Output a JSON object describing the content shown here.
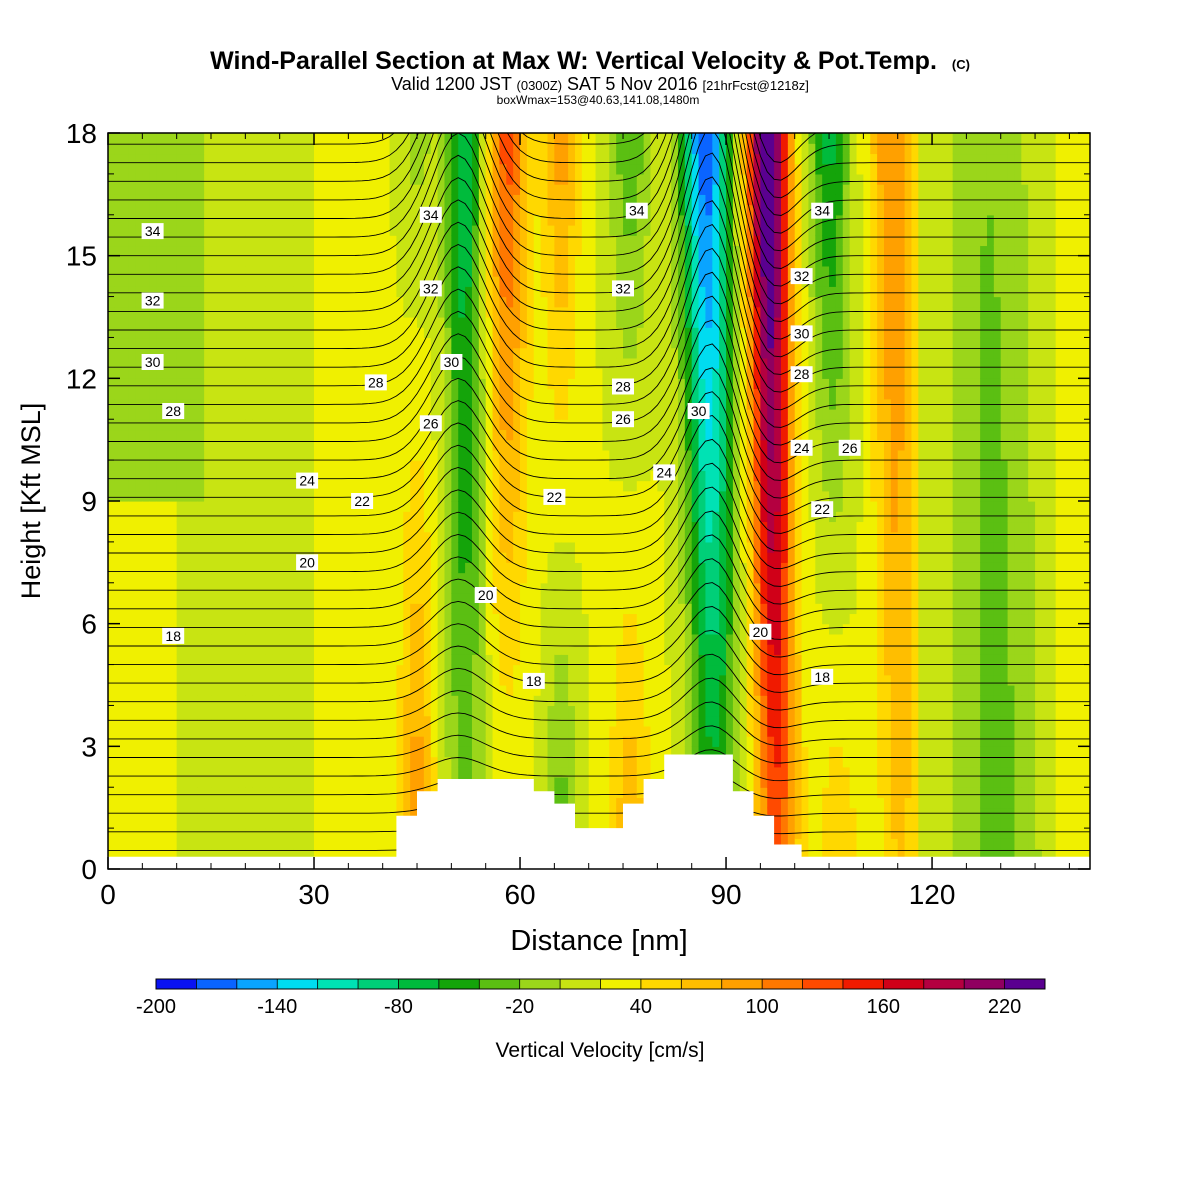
{
  "chart_data": {
    "type": "heatmap",
    "title": "Wind-Parallel Section at Max W: Vertical Velocity & Pot.Temp.",
    "title_mark": "(C)",
    "subtitle_parts": [
      "Valid 1200 JST ",
      "(0300Z)",
      " SAT 5 Nov 2016 ",
      "[21hrFcst@1218z]"
    ],
    "subtitle2": "boxWmax=153@40.63,141.08,1480m",
    "xlabel": "Distance [nm]",
    "ylabel": "Height [Kft MSL]",
    "xlim": [
      0,
      143
    ],
    "ylim": [
      0,
      18
    ],
    "xticks": [
      0,
      30,
      60,
      90,
      120
    ],
    "yticks": [
      0,
      3,
      6,
      9,
      12,
      15,
      18
    ],
    "colorbar": {
      "label": "Vertical Velocity [cm/s]",
      "min": -200,
      "max": 240,
      "step": 20,
      "tick_labels": [
        "-200",
        "-140",
        "-80",
        "-20",
        "40",
        "100",
        "160",
        "220"
      ],
      "colors": [
        "#0a12f2",
        "#0a64ff",
        "#0aa4ff",
        "#00dcf0",
        "#00e2b4",
        "#00cf78",
        "#00bb3c",
        "#14a40a",
        "#5bbf12",
        "#9bd61a",
        "#c8e412",
        "#f0f000",
        "#ffd800",
        "#ffbe00",
        "#ffa000",
        "#ff7800",
        "#ff4a00",
        "#f01a00",
        "#d00018",
        "#b40040",
        "#900060",
        "#5a0090"
      ]
    },
    "vertical_velocity_bands": [
      {
        "x": 20,
        "top": -10,
        "bottom": -10,
        "width": 8
      },
      {
        "x": 45,
        "top": -30,
        "bottom": 80,
        "width": 2.5
      },
      {
        "x": 52,
        "top": -100,
        "bottom": -40,
        "width": 3
      },
      {
        "x": 58,
        "top": 110,
        "bottom": -10,
        "width": 3
      },
      {
        "x": 66,
        "top": 70,
        "bottom": -60,
        "width": 2.5
      },
      {
        "x": 76,
        "top": -60,
        "bottom": 60,
        "width": 3
      },
      {
        "x": 87,
        "top": -200,
        "bottom": -60,
        "width": 3.5
      },
      {
        "x": 96,
        "top": 240,
        "bottom": 100,
        "width": 3
      },
      {
        "x": 105,
        "top": -90,
        "bottom": 40,
        "width": 3
      },
      {
        "x": 114,
        "top": 80,
        "bottom": 40,
        "width": 3
      },
      {
        "x": 128,
        "top": -20,
        "bottom": -40,
        "width": 3.5
      }
    ],
    "terrain": [
      [
        0,
        0.3
      ],
      [
        42,
        0.3
      ],
      [
        42,
        1.3
      ],
      [
        45,
        1.3
      ],
      [
        45,
        1.9
      ],
      [
        48,
        1.9
      ],
      [
        48,
        2.2
      ],
      [
        62,
        2.2
      ],
      [
        62,
        1.9
      ],
      [
        65,
        1.9
      ],
      [
        65,
        1.6
      ],
      [
        68,
        1.6
      ],
      [
        68,
        1.0
      ],
      [
        75,
        1.0
      ],
      [
        75,
        1.6
      ],
      [
        78,
        1.6
      ],
      [
        78,
        2.2
      ],
      [
        81,
        2.2
      ],
      [
        81,
        2.8
      ],
      [
        91,
        2.8
      ],
      [
        91,
        1.9
      ],
      [
        94,
        1.9
      ],
      [
        94,
        1.3
      ],
      [
        97,
        1.3
      ],
      [
        97,
        0.6
      ],
      [
        101,
        0.6
      ],
      [
        101,
        0.3
      ],
      [
        143,
        0.3
      ]
    ],
    "pot_temp_contours": {
      "levels_range": [
        16,
        36
      ],
      "interval": 0.5,
      "labels": [
        {
          "text": "34",
          "x": 6.5,
          "y": 15.6
        },
        {
          "text": "32",
          "x": 6.5,
          "y": 13.9
        },
        {
          "text": "30",
          "x": 6.5,
          "y": 12.4
        },
        {
          "text": "28",
          "x": 9.5,
          "y": 11.2
        },
        {
          "text": "24",
          "x": 29,
          "y": 9.5
        },
        {
          "text": "20",
          "x": 29,
          "y": 7.5
        },
        {
          "text": "18",
          "x": 9.5,
          "y": 5.7
        },
        {
          "text": "22",
          "x": 37,
          "y": 9.0
        },
        {
          "text": "28",
          "x": 39,
          "y": 11.9
        },
        {
          "text": "26",
          "x": 47,
          "y": 10.9
        },
        {
          "text": "34",
          "x": 47,
          "y": 16.0
        },
        {
          "text": "32",
          "x": 47,
          "y": 14.2
        },
        {
          "text": "30",
          "x": 50,
          "y": 12.4
        },
        {
          "text": "20",
          "x": 55,
          "y": 6.7
        },
        {
          "text": "22",
          "x": 65,
          "y": 9.1
        },
        {
          "text": "18",
          "x": 62,
          "y": 4.6
        },
        {
          "text": "34",
          "x": 77,
          "y": 16.1
        },
        {
          "text": "32",
          "x": 75,
          "y": 14.2
        },
        {
          "text": "28",
          "x": 75,
          "y": 11.8
        },
        {
          "text": "26",
          "x": 75,
          "y": 11.0
        },
        {
          "text": "24",
          "x": 81,
          "y": 9.7
        },
        {
          "text": "30",
          "x": 86,
          "y": 11.2
        },
        {
          "text": "20",
          "x": 95,
          "y": 5.8
        },
        {
          "text": "34",
          "x": 104,
          "y": 16.1
        },
        {
          "text": "32",
          "x": 101,
          "y": 14.5
        },
        {
          "text": "30",
          "x": 101,
          "y": 13.1
        },
        {
          "text": "28",
          "x": 101,
          "y": 12.1
        },
        {
          "text": "24",
          "x": 101,
          "y": 10.3
        },
        {
          "text": "26",
          "x": 108,
          "y": 10.3
        },
        {
          "text": "22",
          "x": 104,
          "y": 8.8
        },
        {
          "text": "18",
          "x": 104,
          "y": 4.7
        }
      ]
    }
  }
}
